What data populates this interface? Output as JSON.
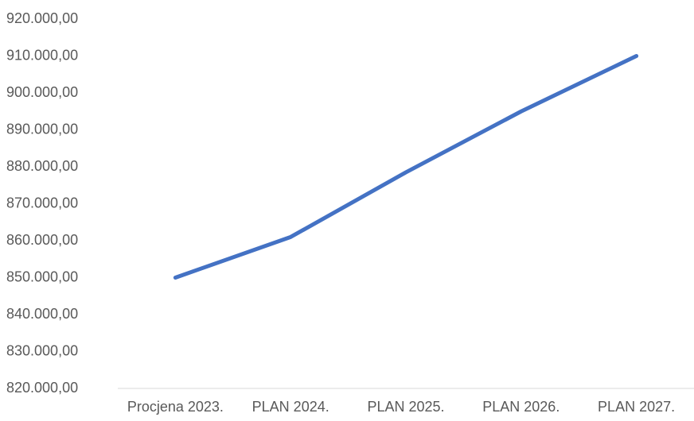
{
  "chart_data": {
    "type": "line",
    "categories": [
      "Procjena 2023.",
      "PLAN 2024.",
      "PLAN 2025.",
      "PLAN 2026.",
      "PLAN 2027."
    ],
    "series": [
      {
        "values": [
          850000,
          861000,
          878500,
          895000,
          910000
        ]
      }
    ],
    "y_ticks": [
      "820.000,00",
      "830.000,00",
      "840.000,00",
      "850.000,00",
      "860.000,00",
      "870.000,00",
      "880.000,00",
      "890.000,00",
      "900.000,00",
      "910.000,00",
      "920.000,00"
    ],
    "ylim": [
      820000,
      920000
    ],
    "grid": false,
    "line_color": "#4472C4",
    "axis_color": "#D9D9D9"
  }
}
